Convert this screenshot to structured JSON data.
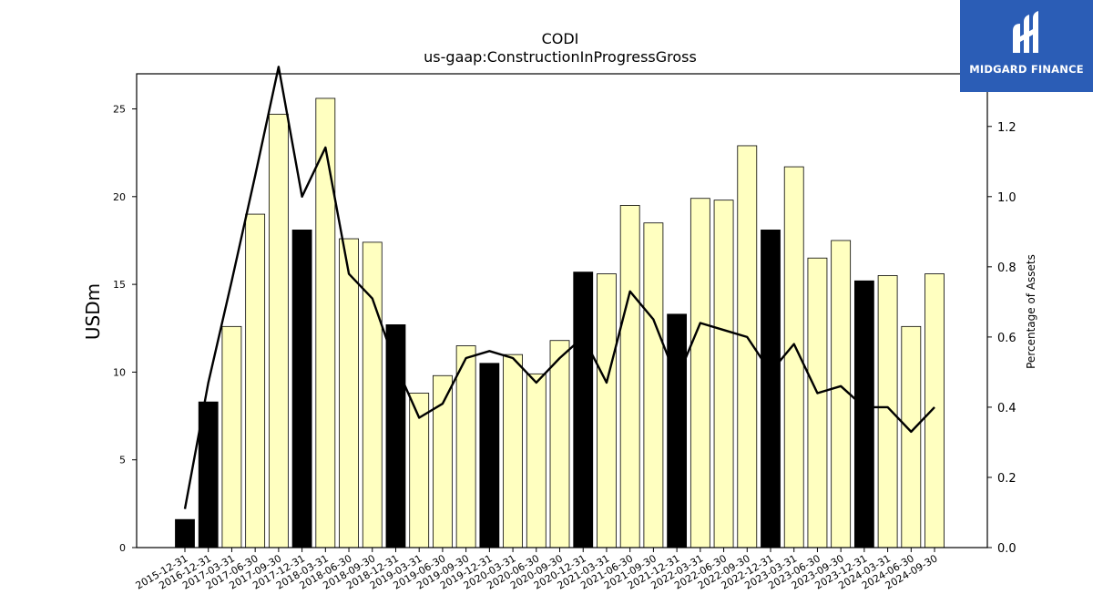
{
  "logo": {
    "text": "MIDGARD FINANCE",
    "icon": "midgard-logo-icon",
    "color": "#2b5db6"
  },
  "chart_data": {
    "type": "bar",
    "title": "CODI",
    "subtitle": "us-gaap:ConstructionInProgressGross",
    "ylabel": "USDm",
    "y2label": "Percentage of Assets",
    "ylim": [
      0,
      27
    ],
    "y2lim": [
      0,
      1.35
    ],
    "yticks": [
      0,
      5,
      10,
      15,
      20,
      25
    ],
    "y2ticks": [
      "0.0",
      "0.2",
      "0.4",
      "0.6",
      "0.8",
      "1.0",
      "1.2"
    ],
    "grid": false,
    "categories": [
      "2015-12-31",
      "2016-12-31",
      "2017-03-31",
      "2017-06-30",
      "2017-09-30",
      "2017-12-31",
      "2018-03-31",
      "2018-06-30",
      "2018-09-30",
      "2018-12-31",
      "2019-03-31",
      "2019-06-30",
      "2019-09-30",
      "2019-12-31",
      "2020-03-31",
      "2020-06-30",
      "2020-09-30",
      "2020-12-31",
      "2021-03-31",
      "2021-06-30",
      "2021-09-30",
      "2021-12-31",
      "2022-03-31",
      "2022-06-30",
      "2022-09-30",
      "2022-12-31",
      "2023-03-31",
      "2023-06-30",
      "2023-09-30",
      "2023-12-31",
      "2024-03-31",
      "2024-06-30",
      "2024-09-30"
    ],
    "series": [
      {
        "kind": "bar",
        "axis": "left",
        "values": [
          1.6,
          8.3,
          12.6,
          19.0,
          24.7,
          18.1,
          25.6,
          17.6,
          17.4,
          12.7,
          8.8,
          9.8,
          11.5,
          10.5,
          11.0,
          9.9,
          11.8,
          15.7,
          15.6,
          19.5,
          18.5,
          13.3,
          19.9,
          19.8,
          22.9,
          18.1,
          21.7,
          16.5,
          17.5,
          15.2,
          15.5,
          12.6,
          15.6
        ],
        "annual": [
          true,
          true,
          false,
          false,
          false,
          true,
          false,
          false,
          false,
          true,
          false,
          false,
          false,
          true,
          false,
          false,
          false,
          true,
          false,
          false,
          false,
          true,
          false,
          false,
          false,
          true,
          false,
          false,
          false,
          true,
          false,
          false,
          false
        ],
        "annual_color": "#000000",
        "quarter_color": "#ffffc0"
      },
      {
        "kind": "line",
        "axis": "right",
        "values": [
          0.11,
          0.47,
          0.76,
          1.06,
          1.37,
          1.0,
          1.14,
          0.78,
          0.71,
          0.52,
          0.37,
          0.41,
          0.54,
          0.56,
          0.54,
          0.47,
          0.54,
          0.6,
          0.47,
          0.73,
          0.65,
          0.48,
          0.64,
          0.62,
          0.6,
          0.5,
          0.58,
          0.44,
          0.46,
          0.4,
          0.4,
          0.33,
          0.4
        ],
        "color": "#000000"
      }
    ]
  }
}
